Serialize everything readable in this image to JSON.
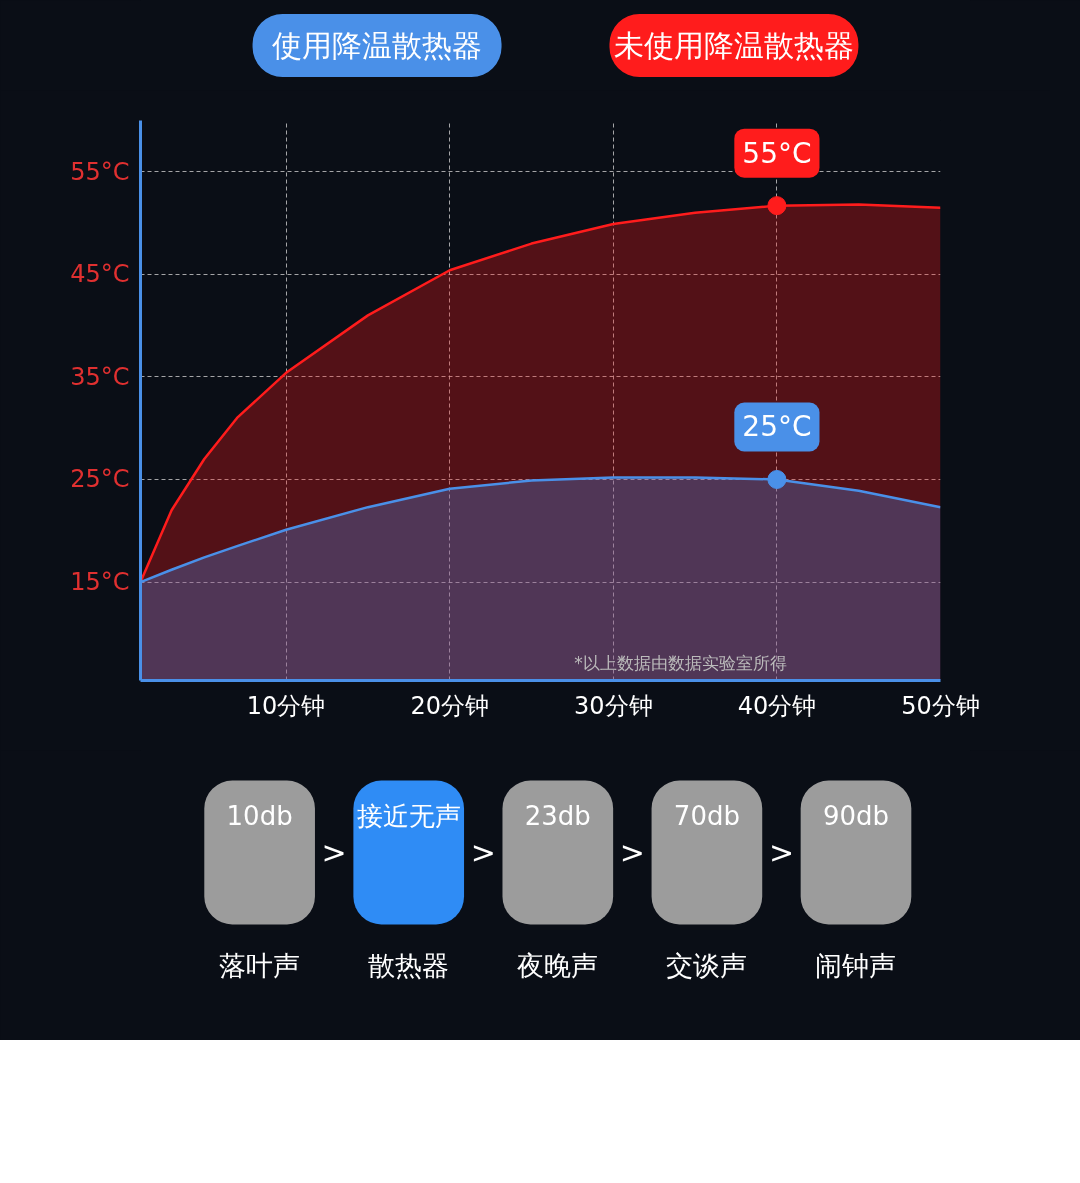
{
  "chart_data": [
    {
      "type": "area",
      "x": [
        1.1,
        3,
        5,
        7,
        10,
        15,
        20,
        25,
        30,
        35,
        40,
        45,
        50
      ],
      "series": [
        {
          "name": "使用降温散热器",
          "color": "#4a90e8",
          "values": [
            15,
            16.2,
            17.4,
            18.5,
            20.1,
            22.3,
            24.1,
            24.9,
            25.2,
            25.2,
            25.0,
            23.9,
            22.3
          ]
        },
        {
          "name": "未使用降温散热器",
          "color": "#ff1c1c",
          "values": [
            15,
            22,
            27,
            31,
            35.4,
            41,
            45.4,
            48,
            49.9,
            51,
            51.7,
            51.8,
            51.5
          ]
        }
      ],
      "xlim": [
        1.1,
        50
      ],
      "xticks": [
        {
          "value": 10,
          "label": "10分钟"
        },
        {
          "value": 20,
          "label": "20分钟"
        },
        {
          "value": 30,
          "label": "30分钟"
        },
        {
          "value": 40,
          "label": "40分钟"
        },
        {
          "value": 50,
          "label": "50分钟"
        }
      ],
      "ylim": [
        5.4,
        60
      ],
      "yticks": [
        {
          "value": 15,
          "label": "15°C"
        },
        {
          "value": 25,
          "label": "25°C"
        },
        {
          "value": 35,
          "label": "35°C"
        },
        {
          "value": 45,
          "label": "45°C"
        },
        {
          "value": 55,
          "label": "55°C"
        }
      ],
      "grid": true,
      "legend": "top",
      "annotations": [
        {
          "text": "55°C",
          "x": 40,
          "y": 51.7
        },
        {
          "text": "25°C",
          "x": 40,
          "y": 25.0
        },
        "*以上数据由数据实验室所得"
      ]
    },
    {
      "type": "other",
      "colors": [
        "#9c9c9c",
        "#2f8cf5",
        "#9c9c9c",
        "#9c9c9c",
        "#9c9c9c"
      ],
      "annotations": [
        "10db",
        "落叶声",
        ">",
        "接近无声",
        "散热器",
        ">",
        "23db",
        "夜晚声",
        ">",
        "70db",
        "交谈声",
        ">",
        "90db",
        "闹钟声"
      ]
    }
  ]
}
